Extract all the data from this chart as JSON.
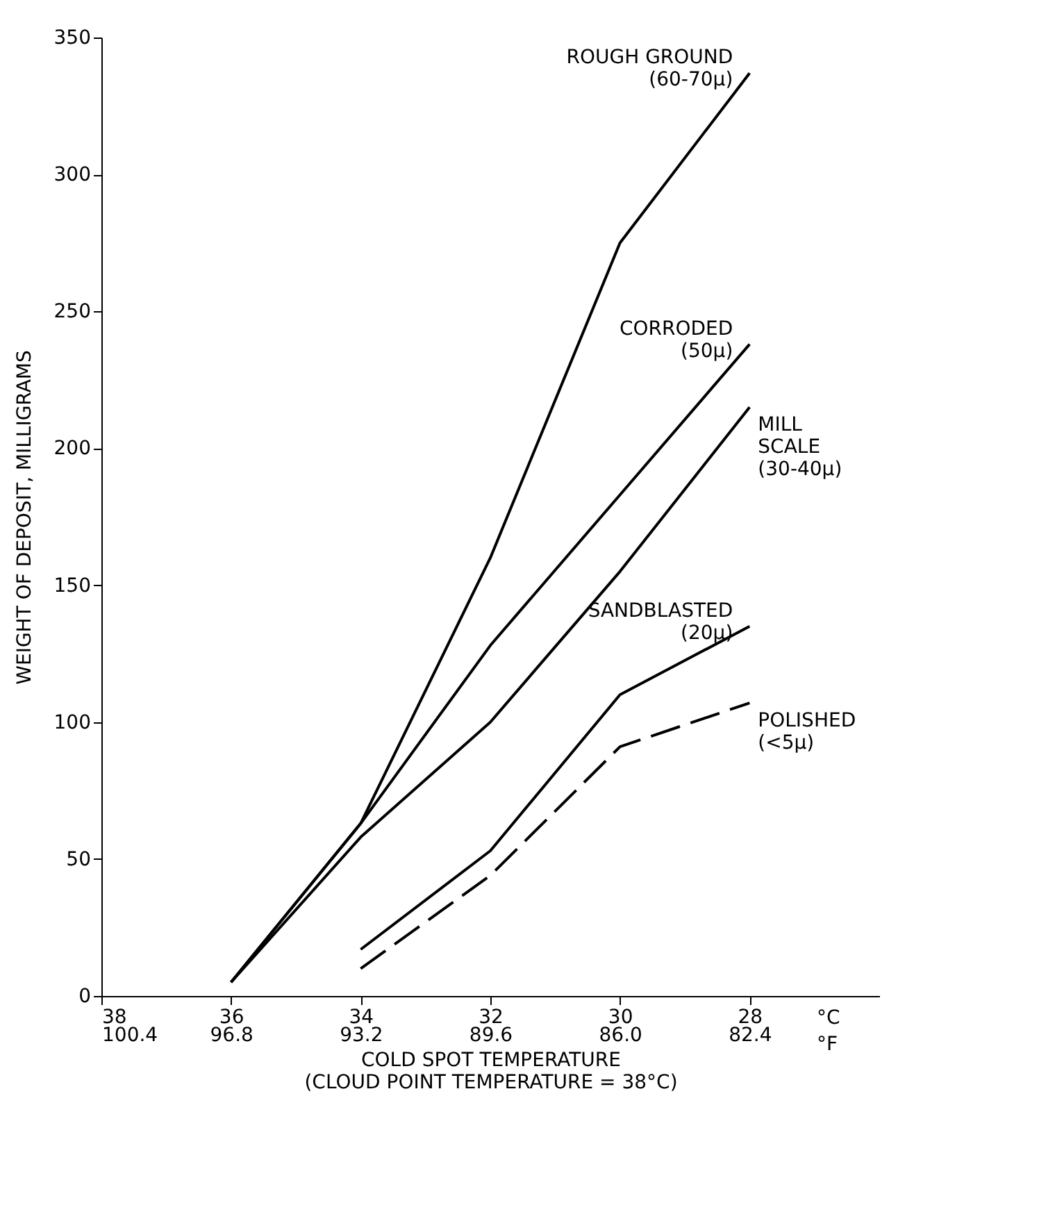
{
  "chart_data": {
    "type": "line",
    "xlabel": "COLD SPOT TEMPERATURE\n(CLOUD POINT TEMPERATURE = 38°C)",
    "ylabel": "WEIGHT OF DEPOSIT, MILLIGRAMS",
    "xlim": [
      38,
      26
    ],
    "ylim": [
      0,
      350
    ],
    "xticks": [
      38,
      36,
      34,
      32,
      30,
      28
    ],
    "x2lim": [
      100.4,
      78.8
    ],
    "x2ticks": [
      100.4,
      96.8,
      93.2,
      89.6,
      {
        "value": 86,
        "label": "86.0"
      },
      82.4
    ],
    "yticks": [
      0,
      50,
      100,
      150,
      200,
      250,
      300,
      350
    ],
    "annotations": [
      "°C\n°F"
    ],
    "grid": false,
    "legend": false,
    "marker": "none",
    "series": [
      {
        "name": "ROUGH GROUND\n(60-70μ)",
        "color": "#000000",
        "x": [
          36,
          34,
          32,
          30,
          28
        ],
        "values": [
          5,
          63,
          160,
          275,
          337
        ],
        "line_style": "solid"
      },
      {
        "name": "CORRODED\n(50μ)",
        "color": "#000000",
        "x": [
          36,
          34,
          32,
          30,
          28
        ],
        "values": [
          5,
          63,
          128,
          183,
          238
        ],
        "line_style": "solid"
      },
      {
        "name": "MILL\nSCALE\n(30-40μ)",
        "color": "#000000",
        "x": [
          36,
          34,
          32,
          30,
          28
        ],
        "values": [
          5,
          58,
          100,
          155,
          215
        ],
        "line_style": "solid"
      },
      {
        "name": "SANDBLASTED\n(20μ)",
        "color": "#000000",
        "x": [
          34,
          32,
          30,
          28
        ],
        "values": [
          17,
          53,
          110,
          135
        ],
        "line_style": "solid"
      },
      {
        "name": "POLISHED\n(<5μ)",
        "color": "#000000",
        "x": [
          34,
          32,
          30,
          28
        ],
        "values": [
          10,
          44,
          91,
          107
        ],
        "line_style": "dashed"
      }
    ]
  }
}
